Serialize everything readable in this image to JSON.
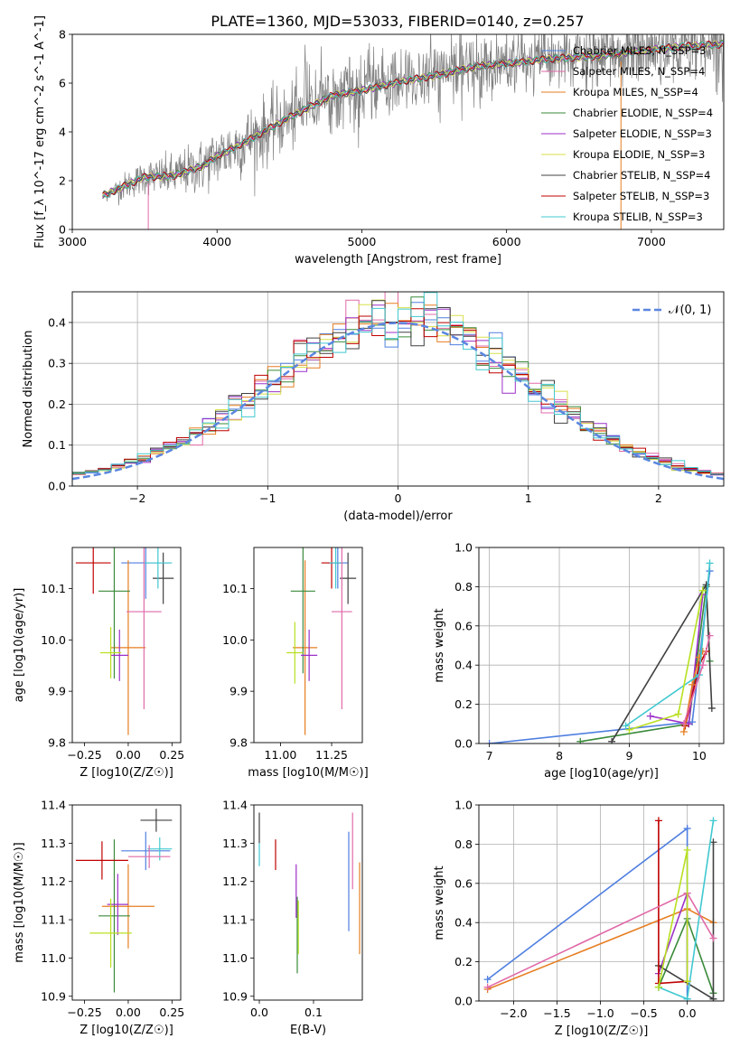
{
  "figure_title": "PLATE=1360, MJD=53033, FIBERID=0140, z=0.257",
  "colors": [
    "#4f7fe0",
    "#e67e22",
    "#2ca02c",
    "#8c3fc0",
    "#d4ad00",
    "#404040",
    "#c00000",
    "#40c8d0",
    "#e06aa8",
    "#a0d000"
  ],
  "chart_data": [
    {
      "type": "line",
      "id": "spectrum",
      "xlabel": "wavelength [Angstrom, rest frame]",
      "ylabel": "Flux [f_λ 10^-17 erg cm^-2 s^-1 A^-1]",
      "xlim": [
        3000,
        7500
      ],
      "ylim": [
        0,
        8
      ],
      "xticks": [
        "3000",
        "4000",
        "5000",
        "6000",
        "7000"
      ],
      "yticks": [
        "0",
        "2",
        "4",
        "6",
        "8"
      ],
      "grid": false,
      "legend_position": "right",
      "continuum": {
        "x": [
          3200,
          3500,
          3700,
          3900,
          4000,
          4200,
          4500,
          4800,
          5000,
          5300,
          5500,
          5800,
          6000,
          6300,
          6600,
          6900,
          7200,
          7500
        ],
        "y": [
          1.35,
          2.15,
          2.2,
          2.6,
          3.0,
          3.6,
          4.6,
          5.5,
          5.7,
          6.1,
          6.3,
          6.7,
          6.8,
          7.0,
          7.1,
          7.3,
          7.5,
          7.6
        ]
      },
      "legend": [
        {
          "label": "Chabrier MILES, N_SSP=3",
          "color": "#4f7fe0"
        },
        {
          "label": "Salpeter MILES, N_SSP=4",
          "color": "#e06aa8"
        },
        {
          "label": "Kroupa MILES, N_SSP=4",
          "color": "#e67e22"
        },
        {
          "label": "Chabrier ELODIE, N_SSP=4",
          "color": "#3a8a3a"
        },
        {
          "label": "Salpeter ELODIE, N_SSP=3",
          "color": "#9c30c8"
        },
        {
          "label": "Kroupa ELODIE, N_SSP=3",
          "color": "#d7e04a"
        },
        {
          "label": "Chabrier STELIB, N_SSP=4",
          "color": "#404040"
        },
        {
          "label": "Salpeter STELIB, N_SSP=3",
          "color": "#c00000"
        },
        {
          "label": "Kroupa STELIB, N_SSP=3",
          "color": "#40c8d0"
        }
      ]
    },
    {
      "type": "histogram",
      "id": "residuals",
      "xlabel": "(data-model)/error",
      "ylabel": "Normed distribution",
      "xlim": [
        -2.5,
        2.5
      ],
      "ylim": [
        0,
        0.475
      ],
      "xticks": [
        "−2",
        "−1",
        "0",
        "1",
        "2"
      ],
      "yticks": [
        "0.0",
        "0.1",
        "0.2",
        "0.3",
        "0.4"
      ],
      "grid": true,
      "legend_position": "top-right",
      "legend": [
        {
          "label": "𝒩(0, 1)",
          "color": "#5b86e0"
        }
      ],
      "bin_width": 0.1
    },
    {
      "type": "scatter",
      "id": "age-vs-Z",
      "xlabel": "Z [log10(Z/Z☉)]",
      "ylabel": "age  [log10(age/yr)]",
      "xlim": [
        -0.32,
        0.3
      ],
      "ylim": [
        9.8,
        10.18
      ],
      "xticks": [
        "−0.25",
        "0.00",
        "0.25"
      ],
      "yticks": [
        "9.8",
        "9.9",
        "10.0",
        "10.1"
      ],
      "points": [
        {
          "x": 0.1,
          "y": 10.15,
          "xerr": 0.14,
          "yerr": 0.07,
          "color": "#4f7fe0"
        },
        {
          "x": 0.0,
          "y": 9.985,
          "xerr": 0.1,
          "yerr": 0.17,
          "color": "#e67e22"
        },
        {
          "x": -0.08,
          "y": 10.095,
          "xerr": 0.09,
          "yerr": 0.17,
          "color": "#3a8a3a"
        },
        {
          "x": -0.05,
          "y": 9.97,
          "xerr": 0.05,
          "yerr": 0.05,
          "color": "#9c30c8"
        },
        {
          "x": -0.1,
          "y": 9.975,
          "xerr": 0.06,
          "yerr": 0.05,
          "color": "#b8e020"
        },
        {
          "x": 0.2,
          "y": 10.12,
          "xerr": 0.06,
          "yerr": 0.05,
          "color": "#404040"
        },
        {
          "x": -0.2,
          "y": 10.15,
          "xerr": 0.1,
          "yerr": 0.06,
          "color": "#c00000"
        },
        {
          "x": 0.17,
          "y": 10.15,
          "xerr": 0.08,
          "yerr": 0.05,
          "color": "#40c8d0"
        },
        {
          "x": 0.09,
          "y": 10.055,
          "xerr": 0.1,
          "yerr": 0.19,
          "color": "#e06aa8"
        }
      ]
    },
    {
      "type": "scatter",
      "id": "age-vs-mass",
      "xlabel": "mass [log10(M/M☉)]",
      "ylabel": "",
      "xlim": [
        10.87,
        11.4
      ],
      "ylim": [
        9.8,
        10.18
      ],
      "xticks": [
        "11.00",
        "11.25"
      ],
      "yticks": [
        "9.8",
        "9.9",
        "10.0",
        "10.1"
      ],
      "points": [
        {
          "x": 11.28,
          "y": 10.15,
          "xerr": 0.05,
          "yerr": 0.05,
          "color": "#4f7fe0"
        },
        {
          "x": 11.12,
          "y": 9.985,
          "xerr": 0.06,
          "yerr": 0.17,
          "color": "#e67e22"
        },
        {
          "x": 11.11,
          "y": 10.095,
          "xerr": 0.06,
          "yerr": 0.16,
          "color": "#3a8a3a"
        },
        {
          "x": 11.14,
          "y": 9.97,
          "xerr": 0.04,
          "yerr": 0.05,
          "color": "#9c30c8"
        },
        {
          "x": 11.07,
          "y": 9.975,
          "xerr": 0.04,
          "yerr": 0.06,
          "color": "#b8e020"
        },
        {
          "x": 11.33,
          "y": 10.12,
          "xerr": 0.04,
          "yerr": 0.05,
          "color": "#404040"
        },
        {
          "x": 11.25,
          "y": 10.15,
          "xerr": 0.05,
          "yerr": 0.05,
          "color": "#c00000"
        },
        {
          "x": 11.27,
          "y": 10.15,
          "xerr": 0.03,
          "yerr": 0.05,
          "color": "#40c8d0"
        },
        {
          "x": 11.3,
          "y": 10.055,
          "xerr": 0.05,
          "yerr": 0.19,
          "color": "#e06aa8"
        }
      ]
    },
    {
      "type": "line",
      "id": "massweight-vs-age",
      "xlabel": "age  [log10(age/yr)]",
      "ylabel": "mass weight",
      "xlim": [
        6.85,
        10.35
      ],
      "ylim": [
        0,
        1
      ],
      "xticks": [
        "7",
        "8",
        "9",
        "10"
      ],
      "yticks": [
        "0.0",
        "0.2",
        "0.4",
        "0.6",
        "0.8",
        "1.0"
      ],
      "grid": true,
      "series": [
        {
          "color": "#4f7fe0",
          "x": [
            7.0,
            9.9,
            10.15
          ],
          "y": [
            0.0,
            0.11,
            0.88
          ]
        },
        {
          "color": "#3a8a3a",
          "x": [
            8.3,
            9.85,
            10.1,
            10.15
          ],
          "y": [
            0.01,
            0.1,
            0.8,
            0.42
          ]
        },
        {
          "color": "#404040",
          "x": [
            8.75,
            10.1,
            10.18
          ],
          "y": [
            0.01,
            0.81,
            0.18
          ]
        },
        {
          "color": "#9c30c8",
          "x": [
            9.3,
            9.85,
            10.05
          ],
          "y": [
            0.14,
            0.1,
            0.76
          ]
        },
        {
          "color": "#c00000",
          "x": [
            9.8,
            10.0,
            10.1
          ],
          "y": [
            0.09,
            0.4,
            0.47
          ]
        },
        {
          "color": "#e67e22",
          "x": [
            9.78,
            9.9,
            10.0,
            10.05
          ],
          "y": [
            0.06,
            0.3,
            0.44,
            0.47
          ]
        },
        {
          "color": "#40c8d0",
          "x": [
            8.95,
            10.0,
            10.15
          ],
          "y": [
            0.09,
            0.35,
            0.92
          ]
        },
        {
          "color": "#e06aa8",
          "x": [
            9.78,
            10.05,
            10.15
          ],
          "y": [
            0.1,
            0.4,
            0.55
          ]
        },
        {
          "color": "#b8e020",
          "x": [
            9.0,
            9.7,
            10.05
          ],
          "y": [
            0.07,
            0.15,
            0.78
          ]
        }
      ]
    },
    {
      "type": "scatter",
      "id": "mass-vs-Z",
      "xlabel": "Z [log10(Z/Z☉)]",
      "ylabel": "mass [log10(M/M☉)]",
      "xlim": [
        -0.32,
        0.3
      ],
      "ylim": [
        10.89,
        11.4
      ],
      "xticks": [
        "−0.25",
        "0.00",
        "0.25"
      ],
      "yticks": [
        "10.9",
        "11.0",
        "11.1",
        "11.2",
        "11.3",
        "11.4"
      ],
      "points": [
        {
          "x": 0.1,
          "y": 11.28,
          "xerr": 0.14,
          "yerr": 0.05,
          "color": "#4f7fe0"
        },
        {
          "x": 0.0,
          "y": 11.135,
          "xerr": 0.15,
          "yerr": 0.11,
          "color": "#e67e22"
        },
        {
          "x": -0.08,
          "y": 11.11,
          "xerr": 0.09,
          "yerr": 0.2,
          "color": "#3a8a3a"
        },
        {
          "x": -0.06,
          "y": 11.14,
          "xerr": 0.06,
          "yerr": 0.08,
          "color": "#9c30c8"
        },
        {
          "x": -0.1,
          "y": 11.065,
          "xerr": 0.12,
          "yerr": 0.09,
          "color": "#b8e020"
        },
        {
          "x": 0.16,
          "y": 11.36,
          "xerr": 0.09,
          "yerr": 0.03,
          "color": "#404040"
        },
        {
          "x": -0.15,
          "y": 11.255,
          "xerr": 0.15,
          "yerr": 0.05,
          "color": "#c00000"
        },
        {
          "x": 0.18,
          "y": 11.285,
          "xerr": 0.07,
          "yerr": 0.03,
          "color": "#40c8d0"
        },
        {
          "x": 0.12,
          "y": 11.265,
          "xerr": 0.12,
          "yerr": 0.03,
          "color": "#e06aa8"
        }
      ]
    },
    {
      "type": "scatter",
      "id": "mass-vs-EBV",
      "xlabel": "E(B-V)",
      "ylabel": "",
      "xlim": [
        -0.01,
        0.19
      ],
      "ylim": [
        10.89,
        11.4
      ],
      "xticks": [
        "0.0",
        "0.1"
      ],
      "yticks": [
        "10.9",
        "11.0",
        "11.1",
        "11.2",
        "11.3",
        "11.4"
      ],
      "points": [
        {
          "x": 0.165,
          "y": 11.2,
          "xerr": 0,
          "yerr": 0.13,
          "color": "#4f7fe0"
        },
        {
          "x": 0.185,
          "y": 11.13,
          "xerr": 0,
          "yerr": 0.12,
          "color": "#e67e22"
        },
        {
          "x": 0.07,
          "y": 11.06,
          "xerr": 0,
          "yerr": 0.1,
          "color": "#3a8a3a"
        },
        {
          "x": 0.068,
          "y": 11.175,
          "xerr": 0,
          "yerr": 0.07,
          "color": "#9c30c8"
        },
        {
          "x": 0.072,
          "y": 11.08,
          "xerr": 0,
          "yerr": 0.07,
          "color": "#b8e020"
        },
        {
          "x": 0.0,
          "y": 11.34,
          "xerr": 0,
          "yerr": 0.04,
          "color": "#404040"
        },
        {
          "x": 0.03,
          "y": 11.27,
          "xerr": 0,
          "yerr": 0.04,
          "color": "#c00000"
        },
        {
          "x": 0.0,
          "y": 11.27,
          "xerr": 0,
          "yerr": 0.03,
          "color": "#40c8d0"
        },
        {
          "x": 0.172,
          "y": 11.28,
          "xerr": 0,
          "yerr": 0.1,
          "color": "#e06aa8"
        }
      ]
    },
    {
      "type": "line",
      "id": "massweight-vs-Z",
      "xlabel": "Z [log10(Z/Z☉)]",
      "ylabel": "mass weight",
      "xlim": [
        -2.4,
        0.42
      ],
      "ylim": [
        0,
        1
      ],
      "xticks": [
        "−2.0",
        "−1.5",
        "−1.0",
        "−0.5",
        "0.0"
      ],
      "yticks": [
        "0.0",
        "0.2",
        "0.4",
        "0.6",
        "0.8",
        "1.0"
      ],
      "grid": true,
      "series": [
        {
          "color": "#4f7fe0",
          "x": [
            -2.3,
            0.0,
            0.0
          ],
          "y": [
            0.11,
            0.88,
            0.01
          ]
        },
        {
          "color": "#e67e22",
          "x": [
            -2.3,
            0.0,
            0.3
          ],
          "y": [
            0.06,
            0.47,
            0.4
          ]
        },
        {
          "color": "#3a8a3a",
          "x": [
            -0.33,
            0.0,
            0.3
          ],
          "y": [
            0.07,
            0.42,
            0.04
          ]
        },
        {
          "color": "#9c30c8",
          "x": [
            -0.33,
            0.0,
            0.0
          ],
          "y": [
            0.14,
            0.55,
            0.1
          ]
        },
        {
          "color": "#404040",
          "x": [
            -0.33,
            0.3,
            0.3
          ],
          "y": [
            0.18,
            0.01,
            0.81
          ]
        },
        {
          "color": "#c00000",
          "x": [
            -0.33,
            -0.33,
            0.0
          ],
          "y": [
            0.92,
            0.09,
            0.1
          ]
        },
        {
          "color": "#40c8d0",
          "x": [
            -0.33,
            0.0,
            0.3
          ],
          "y": [
            0.07,
            0.01,
            0.92
          ]
        },
        {
          "color": "#e06aa8",
          "x": [
            -2.3,
            0.0,
            0.3
          ],
          "y": [
            0.07,
            0.55,
            0.32
          ]
        },
        {
          "color": "#b8e020",
          "x": [
            -0.33,
            0.0,
            0.0
          ],
          "y": [
            0.07,
            0.77,
            0.1
          ]
        }
      ]
    }
  ]
}
